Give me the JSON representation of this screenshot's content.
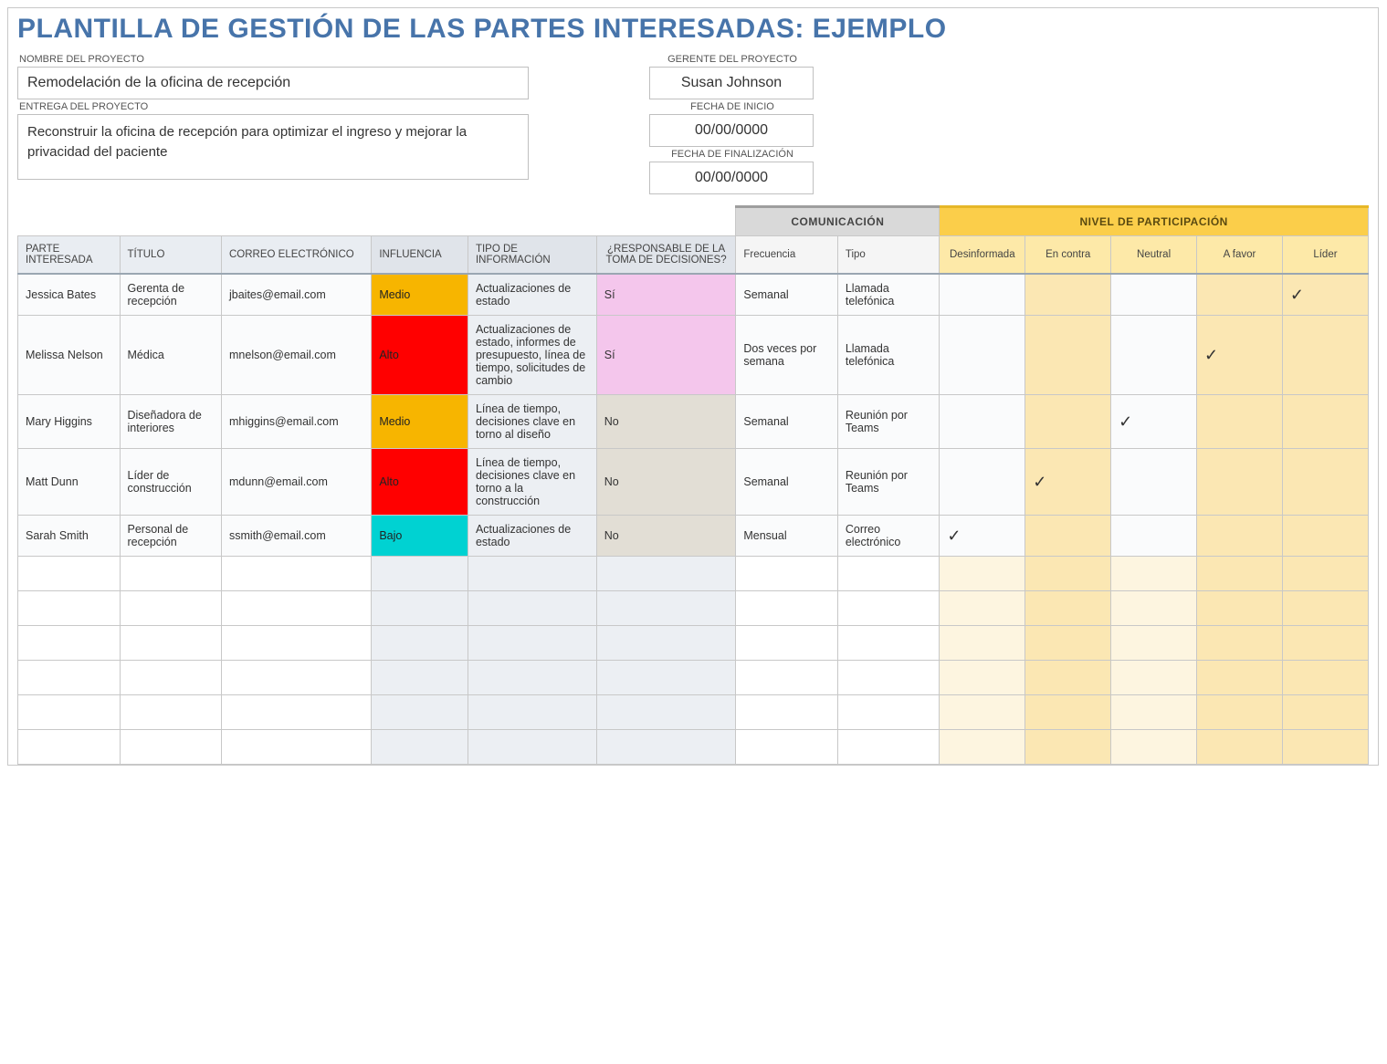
{
  "title": "PLANTILLA DE GESTIÓN DE LAS PARTES INTERESADAS: EJEMPLO",
  "labels": {
    "project_name": "NOMBRE DEL PROYECTO",
    "project_delivery": "ENTREGA DEL PROYECTO",
    "project_manager": "GERENTE DEL PROYECTO",
    "start_date": "FECHA DE INICIO",
    "end_date": "FECHA DE FINALIZACIÓN"
  },
  "project": {
    "name": "Remodelación de la oficina de recepción",
    "delivery": "Reconstruir la oficina de recepción para optimizar el ingreso y mejorar la privacidad del paciente",
    "manager": "Susan Johnson",
    "start_date": "00/00/0000",
    "end_date": "00/00/0000"
  },
  "bands": {
    "communication": "COMUNICACIÓN",
    "participation": "NIVEL DE PARTICIPACIÓN"
  },
  "headers": {
    "stakeholder": "PARTE INTERESADA",
    "title": "TÍTULO",
    "email": "CORREO ELECTRÓNICO",
    "influence": "INFLUENCIA",
    "info_type": "TIPO DE INFORMACIÓN",
    "decision": "¿RESPONSABLE DE LA TOMA DE DECISIONES?",
    "frequency": "Frecuencia",
    "type": "Tipo",
    "part0": "Desinformada",
    "part1": "En contra",
    "part2": "Neutral",
    "part3": "A favor",
    "part4": "Líder"
  },
  "colors": {
    "title": "#4774aa",
    "band_comm_bg": "#d9d9d9",
    "band_part_bg": "#fbce4a",
    "hdr_bg": "#e9edf2",
    "hdr_part_bg": "#fde9a8",
    "info_col_bg": "#eceff3",
    "part_cell_bg": "#fdf5e0",
    "part_cell_alt_bg": "#fbe7b3",
    "influence_medio": "#f7b500",
    "influence_alto": "#ff0000",
    "influence_bajo": "#00d2d2",
    "decision_yes": "#f4c6ec",
    "decision_no": "#e2ded5"
  },
  "check": "✓",
  "rows": [
    {
      "stakeholder": "Jessica Bates",
      "title": "Gerenta de recepción",
      "email": "jbaites@email.com",
      "influence": "Medio",
      "influence_color": "#f7b500",
      "info": "Actualizaciones de estado",
      "decision": "Sí",
      "decision_color": "#f4c6ec",
      "frequency": "Semanal",
      "type": "Llamada telefónica",
      "participation": 4
    },
    {
      "stakeholder": "Melissa Nelson",
      "title": "Médica",
      "email": "mnelson@email.com",
      "influence": "Alto",
      "influence_color": "#ff0000",
      "info": "Actualizaciones de estado, informes de presupuesto, línea de tiempo, solicitudes de cambio",
      "decision": "Sí",
      "decision_color": "#f4c6ec",
      "frequency": "Dos veces por semana",
      "type": "Llamada telefónica",
      "participation": 3
    },
    {
      "stakeholder": "Mary Higgins",
      "title": "Diseñadora de interiores",
      "email": "mhiggins@email.com",
      "influence": "Medio",
      "influence_color": "#f7b500",
      "info": "Línea de tiempo, decisiones clave en torno al diseño",
      "decision": "No",
      "decision_color": "#e2ded5",
      "frequency": "Semanal",
      "type": "Reunión por Teams",
      "participation": 2
    },
    {
      "stakeholder": "Matt Dunn",
      "title": "Líder de construcción",
      "email": "mdunn@email.com",
      "influence": "Alto",
      "influence_color": "#ff0000",
      "info": "Línea de tiempo, decisiones clave en torno a la construcción",
      "decision": "No",
      "decision_color": "#e2ded5",
      "frequency": "Semanal",
      "type": "Reunión por Teams",
      "participation": 1
    },
    {
      "stakeholder": "Sarah Smith",
      "title": "Personal de recepción",
      "email": "ssmith@email.com",
      "influence": "Bajo",
      "influence_color": "#00d2d2",
      "info": "Actualizaciones de estado",
      "decision": "No",
      "decision_color": "#e2ded5",
      "frequency": "Mensual",
      "type": "Correo electrónico",
      "participation": 0
    }
  ],
  "empty_rows": 6
}
